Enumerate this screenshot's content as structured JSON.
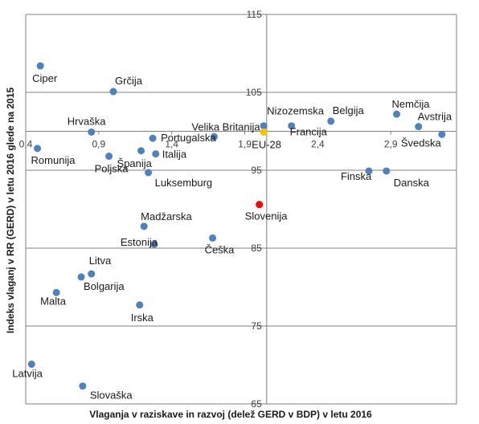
{
  "chart_data": {
    "type": "scatter",
    "title": "",
    "xlabel": "Vlaganja v raziskave in razvoj (delež GERD v BDP) v letu 2016",
    "ylabel": "Indeks vlaganj v RR (GERD) v letu 2016 glede na 2015",
    "xlim": [
      0.4,
      3.35
    ],
    "ylim": [
      65,
      115
    ],
    "x_ticks": [
      "0,4",
      "0,9",
      "1,4",
      "1,9",
      "2,4",
      "2,9"
    ],
    "y_ticks": [
      "65",
      "75",
      "85",
      "95",
      "105",
      "115"
    ],
    "grid": "horizontal",
    "colors": {
      "default": "#4f81bd",
      "highlight": "#ff0000",
      "eu": "#ffc000",
      "grid": "#808080"
    },
    "points": [
      {
        "name": "Ciper",
        "x": 0.5,
        "y": 108.4
      },
      {
        "name": "Grčija",
        "x": 1.0,
        "y": 105.1
      },
      {
        "name": "Hrvaška",
        "x": 0.85,
        "y": 99.9
      },
      {
        "name": "Romunija",
        "x": 0.48,
        "y": 97.8
      },
      {
        "name": "Poljska",
        "x": 0.97,
        "y": 96.8
      },
      {
        "name": "Španija",
        "x": 1.19,
        "y": 97.5
      },
      {
        "name": "Portugalska",
        "x": 1.27,
        "y": 99.1
      },
      {
        "name": "Italija",
        "x": 1.29,
        "y": 97.1
      },
      {
        "name": "Luksemburg",
        "x": 1.24,
        "y": 94.7
      },
      {
        "name": "Velika Britanija",
        "x": 1.69,
        "y": 99.3
      },
      {
        "name": "Nizozemska",
        "x": 2.03,
        "y": 100.7
      },
      {
        "name": "Francija",
        "x": 2.22,
        "y": 100.7
      },
      {
        "name": "Belgija",
        "x": 2.49,
        "y": 101.3
      },
      {
        "name": "Nemčija",
        "x": 2.94,
        "y": 102.2
      },
      {
        "name": "Avstrija",
        "x": 3.09,
        "y": 100.6
      },
      {
        "name": "Švedska",
        "x": 3.25,
        "y": 99.6
      },
      {
        "name": "EU-28",
        "x": 2.03,
        "y": 99.9,
        "color": "eu"
      },
      {
        "name": "Finska",
        "x": 2.75,
        "y": 94.9
      },
      {
        "name": "Danska",
        "x": 2.87,
        "y": 94.9
      },
      {
        "name": "Slovenija",
        "x": 2.0,
        "y": 90.6,
        "color": "highlight"
      },
      {
        "name": "Madžarska",
        "x": 1.21,
        "y": 87.8
      },
      {
        "name": "Estonija",
        "x": 1.28,
        "y": 85.5
      },
      {
        "name": "Češka",
        "x": 1.68,
        "y": 86.3
      },
      {
        "name": "Litva",
        "x": 0.85,
        "y": 81.7
      },
      {
        "name": "Bolgarija",
        "x": 0.78,
        "y": 81.3
      },
      {
        "name": "Malta",
        "x": 0.61,
        "y": 79.3
      },
      {
        "name": "Irska",
        "x": 1.18,
        "y": 77.7
      },
      {
        "name": "Latvija",
        "x": 0.44,
        "y": 70.1
      },
      {
        "name": "Slovaška",
        "x": 0.79,
        "y": 67.3
      }
    ]
  }
}
